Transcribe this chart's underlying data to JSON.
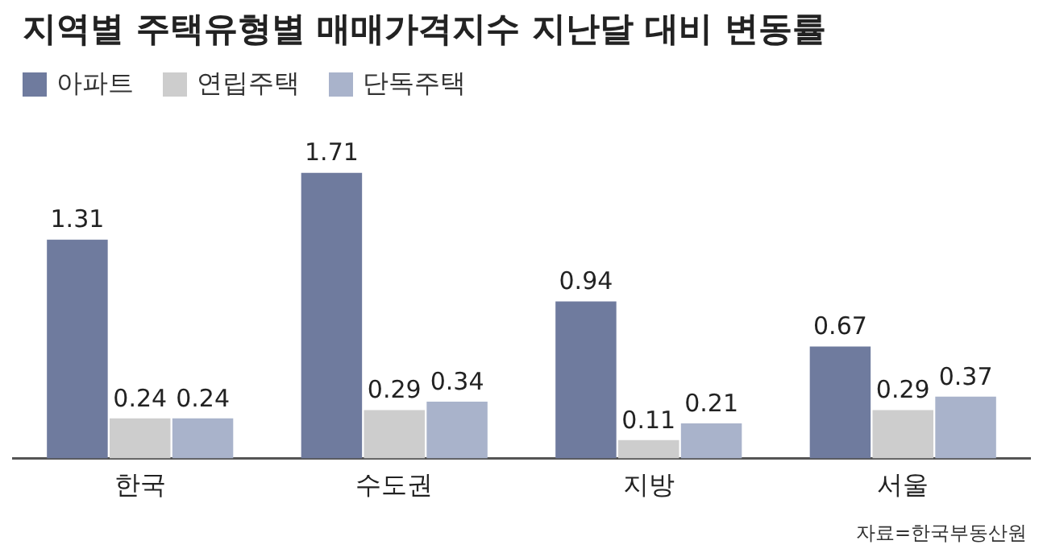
{
  "chart_data": {
    "type": "bar",
    "title": "지역별 주택유형별 매매가격지수 지난달 대비 변동률",
    "categories": [
      "한국",
      "수도권",
      "지방",
      "서울"
    ],
    "series": [
      {
        "name": "아파트",
        "color": "#6f7b9e",
        "values": [
          1.31,
          1.71,
          0.94,
          0.67
        ]
      },
      {
        "name": "연립주택",
        "color": "#cdcdcd",
        "values": [
          0.24,
          0.29,
          0.11,
          0.29
        ]
      },
      {
        "name": "단독주택",
        "color": "#a9b3cb",
        "values": [
          0.24,
          0.34,
          0.21,
          0.37
        ]
      }
    ],
    "data_labels": true,
    "legend": "top left",
    "grid": false,
    "annotations": [
      "자료=한국부동산원"
    ]
  }
}
